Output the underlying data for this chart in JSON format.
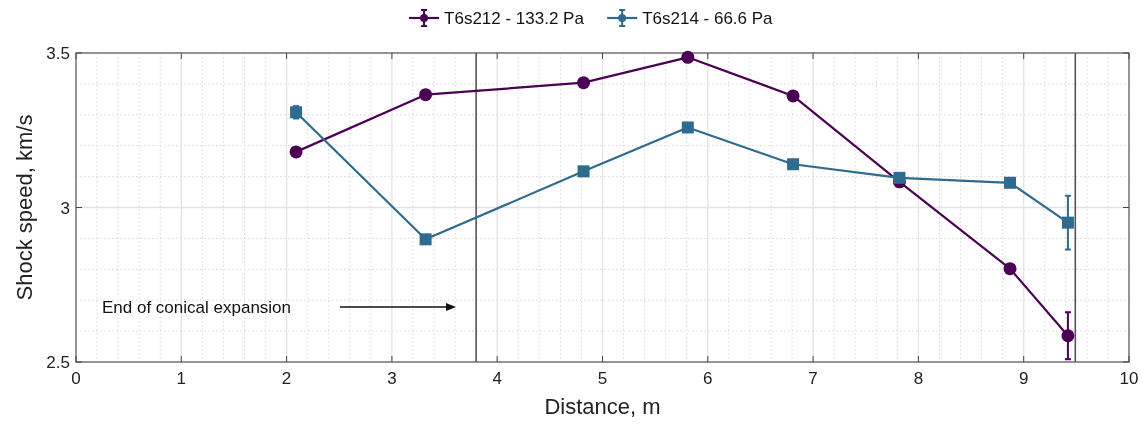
{
  "chart_data": {
    "type": "line",
    "xlabel": "Distance, m",
    "ylabel": "Shock speed, km/s",
    "xlim": [
      0,
      10
    ],
    "xticks": [
      0,
      1,
      2,
      3,
      4,
      5,
      6,
      7,
      8,
      9,
      10
    ],
    "ylim": [
      2.5,
      3.5
    ],
    "yticks": [
      2.5,
      3,
      3.5
    ],
    "grid": true,
    "legend": "top",
    "series": [
      {
        "name": "T6s212 - 133.2 Pa",
        "color": "#4b0055",
        "marker": "circle",
        "x": [
          2.09,
          3.32,
          4.82,
          5.81,
          6.81,
          7.82,
          8.87,
          9.42
        ],
        "values": [
          3.18,
          3.365,
          3.404,
          3.486,
          3.361,
          3.083,
          2.802,
          2.585
        ],
        "errors": [
          0.01,
          null,
          null,
          null,
          null,
          null,
          null,
          0.076
        ]
      },
      {
        "name": "T6s214 - 66.6 Pa",
        "color": "#2e6b8e",
        "marker": "square",
        "x": [
          2.09,
          3.32,
          4.82,
          5.81,
          6.81,
          7.82,
          8.87,
          9.42
        ],
        "values": [
          3.308,
          2.897,
          3.117,
          3.259,
          3.14,
          3.096,
          3.08,
          2.951
        ],
        "errors": [
          0.02,
          null,
          null,
          null,
          null,
          null,
          0.01,
          0.087
        ]
      }
    ],
    "ref_lines": [
      {
        "axis": "x",
        "value": 3.8,
        "color": "#555555"
      },
      {
        "axis": "x",
        "value": 9.49,
        "color": "#555555"
      }
    ],
    "annotations": [
      "End of conical expansion"
    ]
  }
}
